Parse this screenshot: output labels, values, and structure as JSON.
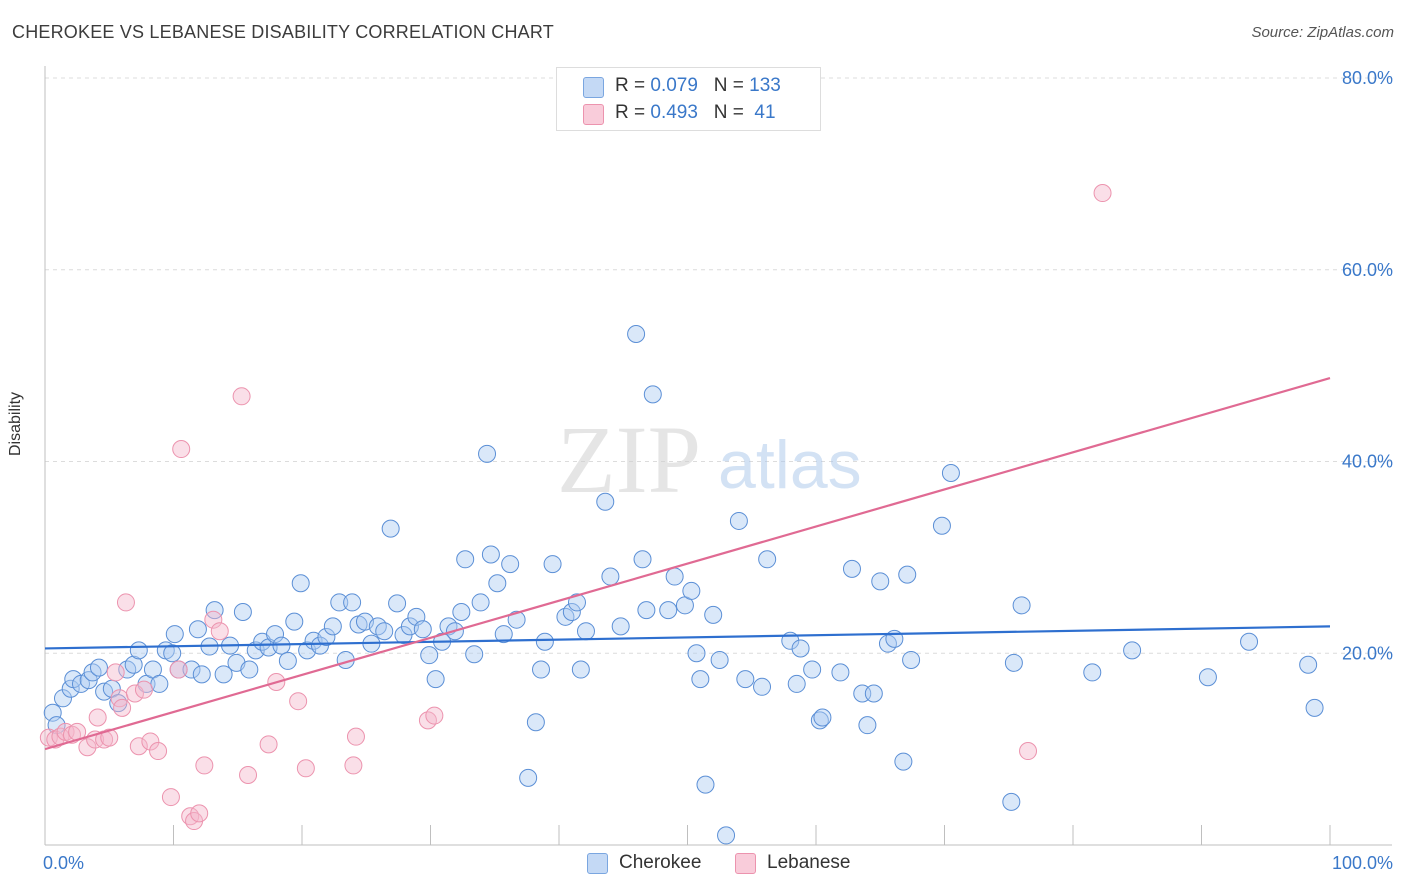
{
  "header": {
    "title": "CHEROKEE VS LEBANESE DISABILITY CORRELATION CHART",
    "source": "Source: ZipAtlas.com"
  },
  "legend": {
    "rows": [
      {
        "r_label": "R = ",
        "r_value": "0.079",
        "n_label": "N = ",
        "n_value": "133",
        "color": "#aecbf2"
      },
      {
        "r_label": "R = ",
        "r_value": "0.493",
        "n_label": "N = ",
        "n_value": " 41",
        "color": "#f5b8cb"
      }
    ]
  },
  "bottom_legend": {
    "items": [
      {
        "label": "Cherokee",
        "color": "#aecbf2"
      },
      {
        "label": "Lebanese",
        "color": "#f5b8cb"
      }
    ]
  },
  "watermark": {
    "zip": "ZIP",
    "atlas": "atlas"
  },
  "chart_data": {
    "type": "scatter",
    "title": "CHEROKEE VS LEBANESE DISABILITY CORRELATION CHART",
    "xlabel": "",
    "ylabel": "Disability",
    "xlim": [
      0,
      100
    ],
    "ylim": [
      0,
      80
    ],
    "x_tick_labels": [
      "0.0%",
      "100.0%"
    ],
    "y_ticks": [
      20,
      40,
      60,
      80
    ],
    "y_tick_labels": [
      "20.0%",
      "40.0%",
      "60.0%",
      "80.0%"
    ],
    "grid": "horizontal dashed",
    "legend_position": "top-center",
    "series": [
      {
        "name": "Cherokee",
        "color": "#5b8fd6",
        "fill": "#aecbf2",
        "trend": {
          "x": [
            0,
            100
          ],
          "y": [
            20.5,
            22.8
          ],
          "color": "#2e6fcf"
        },
        "points": [
          [
            0.6,
            13.8
          ],
          [
            0.9,
            12.5
          ],
          [
            1.4,
            15.3
          ],
          [
            2.0,
            16.3
          ],
          [
            2.2,
            17.3
          ],
          [
            2.8,
            16.8
          ],
          [
            3.4,
            17.2
          ],
          [
            3.7,
            18.0
          ],
          [
            4.2,
            18.5
          ],
          [
            4.6,
            16.0
          ],
          [
            5.2,
            16.3
          ],
          [
            5.7,
            14.8
          ],
          [
            6.4,
            18.3
          ],
          [
            6.9,
            18.8
          ],
          [
            7.3,
            20.3
          ],
          [
            7.9,
            16.8
          ],
          [
            8.4,
            18.3
          ],
          [
            8.9,
            16.8
          ],
          [
            9.4,
            20.3
          ],
          [
            9.9,
            20.0
          ],
          [
            10.1,
            22.0
          ],
          [
            10.4,
            18.3
          ],
          [
            11.4,
            18.3
          ],
          [
            11.9,
            22.5
          ],
          [
            12.2,
            17.8
          ],
          [
            12.8,
            20.7
          ],
          [
            13.2,
            24.5
          ],
          [
            13.9,
            17.8
          ],
          [
            14.4,
            20.8
          ],
          [
            14.9,
            19.0
          ],
          [
            15.4,
            24.3
          ],
          [
            15.9,
            18.3
          ],
          [
            16.4,
            20.3
          ],
          [
            16.9,
            21.2
          ],
          [
            17.4,
            20.6
          ],
          [
            17.9,
            22.0
          ],
          [
            18.4,
            20.8
          ],
          [
            18.9,
            19.2
          ],
          [
            19.4,
            23.3
          ],
          [
            19.9,
            27.3
          ],
          [
            20.4,
            20.3
          ],
          [
            20.9,
            21.3
          ],
          [
            21.4,
            20.8
          ],
          [
            21.9,
            21.7
          ],
          [
            22.4,
            22.8
          ],
          [
            22.9,
            25.3
          ],
          [
            23.4,
            19.3
          ],
          [
            23.9,
            25.3
          ],
          [
            24.4,
            23.0
          ],
          [
            24.9,
            23.3
          ],
          [
            25.4,
            21.0
          ],
          [
            25.9,
            22.8
          ],
          [
            26.4,
            22.3
          ],
          [
            26.9,
            33.0
          ],
          [
            27.4,
            25.2
          ],
          [
            27.9,
            21.9
          ],
          [
            28.4,
            22.8
          ],
          [
            28.9,
            23.8
          ],
          [
            29.4,
            22.5
          ],
          [
            29.9,
            19.8
          ],
          [
            30.4,
            17.3
          ],
          [
            30.9,
            21.2
          ],
          [
            31.4,
            22.8
          ],
          [
            31.9,
            22.3
          ],
          [
            32.4,
            24.3
          ],
          [
            32.7,
            29.8
          ],
          [
            33.4,
            19.9
          ],
          [
            33.9,
            25.3
          ],
          [
            34.4,
            40.8
          ],
          [
            34.7,
            30.3
          ],
          [
            35.2,
            27.3
          ],
          [
            35.7,
            22.0
          ],
          [
            36.2,
            29.3
          ],
          [
            36.7,
            23.5
          ],
          [
            37.6,
            7.0
          ],
          [
            38.2,
            12.8
          ],
          [
            38.6,
            18.3
          ],
          [
            38.9,
            21.2
          ],
          [
            39.5,
            29.3
          ],
          [
            40.5,
            23.8
          ],
          [
            41.0,
            24.3
          ],
          [
            41.4,
            25.3
          ],
          [
            41.7,
            18.3
          ],
          [
            42.1,
            22.3
          ],
          [
            43.6,
            35.8
          ],
          [
            44.0,
            28.0
          ],
          [
            44.8,
            22.8
          ],
          [
            46.0,
            53.3
          ],
          [
            46.5,
            29.8
          ],
          [
            46.8,
            24.5
          ],
          [
            47.3,
            47.0
          ],
          [
            48.5,
            24.5
          ],
          [
            49.0,
            28.0
          ],
          [
            49.8,
            25.0
          ],
          [
            50.3,
            26.5
          ],
          [
            50.7,
            20.0
          ],
          [
            51.0,
            17.3
          ],
          [
            51.4,
            6.3
          ],
          [
            52.0,
            24.0
          ],
          [
            52.5,
            19.3
          ],
          [
            53.0,
            1.0
          ],
          [
            54.0,
            33.8
          ],
          [
            54.5,
            17.3
          ],
          [
            55.8,
            16.5
          ],
          [
            56.2,
            29.8
          ],
          [
            58.0,
            21.3
          ],
          [
            58.5,
            16.8
          ],
          [
            58.8,
            20.5
          ],
          [
            59.7,
            18.3
          ],
          [
            60.3,
            13.0
          ],
          [
            60.5,
            13.3
          ],
          [
            61.9,
            18.0
          ],
          [
            62.8,
            28.8
          ],
          [
            63.6,
            15.8
          ],
          [
            64.0,
            12.5
          ],
          [
            64.5,
            15.8
          ],
          [
            65.0,
            27.5
          ],
          [
            65.6,
            21.0
          ],
          [
            66.1,
            21.5
          ],
          [
            66.8,
            8.7
          ],
          [
            67.1,
            28.2
          ],
          [
            67.4,
            19.3
          ],
          [
            69.8,
            33.3
          ],
          [
            70.5,
            38.8
          ],
          [
            75.2,
            4.5
          ],
          [
            75.4,
            19.0
          ],
          [
            76.0,
            25.0
          ],
          [
            81.5,
            18.0
          ],
          [
            84.6,
            20.3
          ],
          [
            98.3,
            18.8
          ],
          [
            98.8,
            14.3
          ],
          [
            90.5,
            17.5
          ],
          [
            93.7,
            21.2
          ]
        ]
      },
      {
        "name": "Lebanese",
        "color": "#ec93ae",
        "fill": "#f5b8cb",
        "trend": {
          "x": [
            0,
            100
          ],
          "y": [
            10.0,
            48.7
          ],
          "color": "#e06a93"
        },
        "points": [
          [
            0.3,
            11.2
          ],
          [
            0.8,
            11.0
          ],
          [
            1.2,
            11.3
          ],
          [
            1.6,
            11.8
          ],
          [
            2.1,
            11.5
          ],
          [
            2.5,
            11.8
          ],
          [
            3.3,
            10.2
          ],
          [
            3.9,
            11.0
          ],
          [
            4.1,
            13.3
          ],
          [
            4.6,
            11.0
          ],
          [
            5.0,
            11.2
          ],
          [
            5.5,
            18.0
          ],
          [
            5.8,
            15.3
          ],
          [
            6.0,
            14.3
          ],
          [
            6.3,
            25.3
          ],
          [
            7.0,
            15.8
          ],
          [
            7.3,
            10.3
          ],
          [
            7.7,
            16.2
          ],
          [
            8.2,
            10.8
          ],
          [
            8.8,
            9.8
          ],
          [
            9.8,
            5.0
          ],
          [
            10.4,
            18.3
          ],
          [
            10.6,
            41.3
          ],
          [
            11.3,
            3.0
          ],
          [
            11.6,
            2.5
          ],
          [
            12.0,
            3.3
          ],
          [
            12.4,
            8.3
          ],
          [
            13.1,
            23.5
          ],
          [
            13.6,
            22.3
          ],
          [
            15.3,
            46.8
          ],
          [
            15.8,
            7.3
          ],
          [
            17.4,
            10.5
          ],
          [
            18.0,
            17.0
          ],
          [
            19.7,
            15.0
          ],
          [
            20.3,
            8.0
          ],
          [
            24.0,
            8.3
          ],
          [
            24.2,
            11.3
          ],
          [
            29.8,
            13.0
          ],
          [
            30.3,
            13.5
          ],
          [
            76.5,
            9.8
          ],
          [
            82.3,
            68.0
          ]
        ]
      }
    ]
  }
}
